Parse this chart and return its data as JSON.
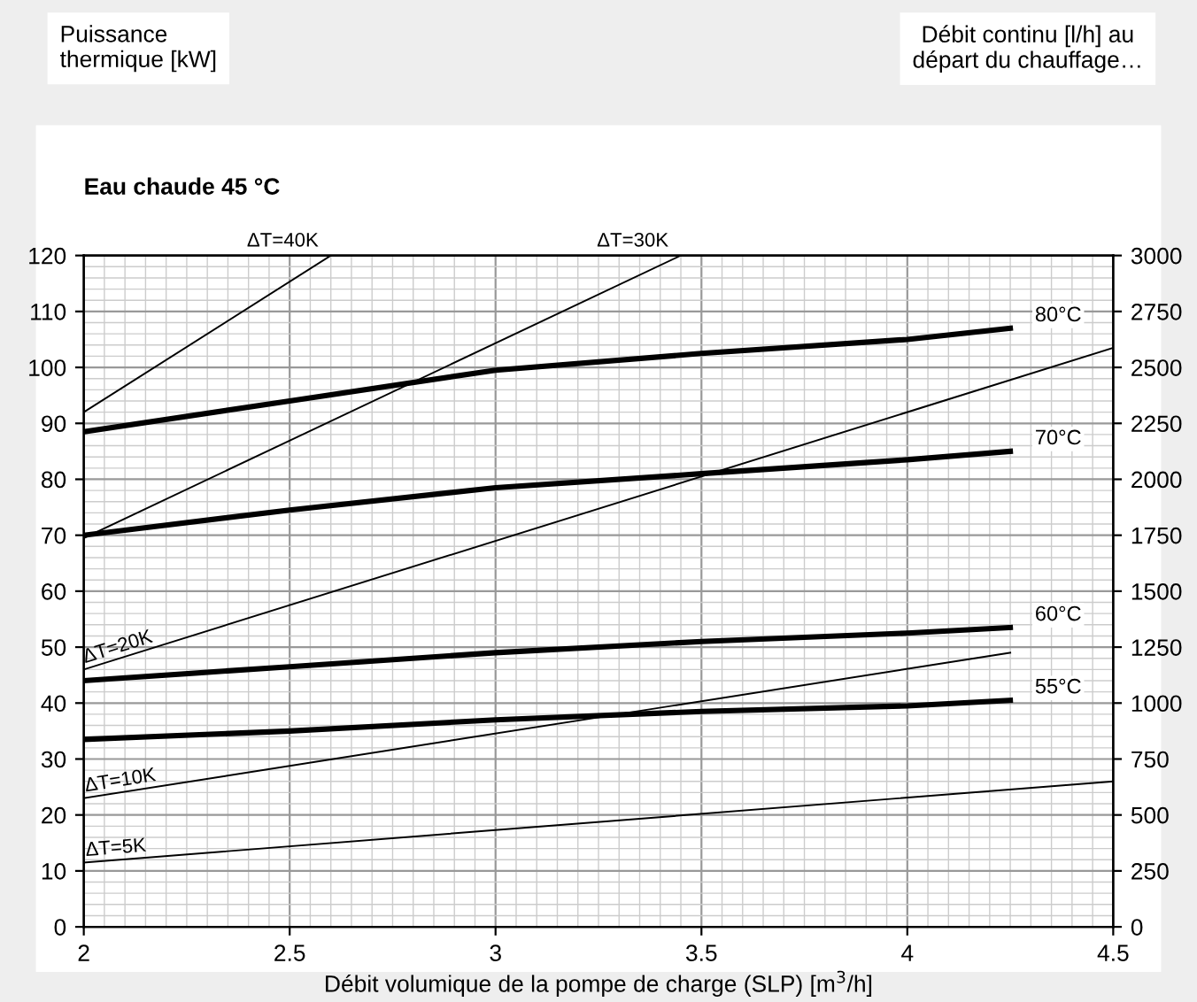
{
  "chart_data": {
    "type": "line",
    "title": "Eau chaude 45 °C",
    "xlabel": "Débit volumique de la pompe de charge (SLP) [m$^{3}$/h]",
    "annotations": [
      "Puissance\nthermique [kW]",
      "Débit continu [l/h] au\ndépart du chauffage…"
    ],
    "xlim": [
      2,
      4.5
    ],
    "xticks": [
      2,
      2.5,
      3,
      3.5,
      4,
      4.5
    ],
    "ylim": [
      0,
      120
    ],
    "yticks": [
      0,
      10,
      20,
      30,
      40,
      50,
      60,
      70,
      80,
      90,
      100,
      110,
      120
    ],
    "y2lim": [
      0,
      3000
    ],
    "y2ticks": [
      0,
      250,
      500,
      750,
      1000,
      1250,
      1500,
      1750,
      2000,
      2250,
      2500,
      2750,
      3000
    ],
    "grid": true,
    "legend": false,
    "marker": "none",
    "line_style": "solid",
    "series": [
      {
        "name": "80°C",
        "color": "#000000",
        "x": [
          2,
          2.5,
          3,
          3.5,
          4,
          4.25
        ],
        "values": [
          88.5,
          94,
          99.5,
          102.5,
          105,
          107
        ]
      },
      {
        "name": "70°C",
        "color": "#000000",
        "x": [
          2,
          2.5,
          3,
          3.5,
          4,
          4.25
        ],
        "values": [
          70,
          74.5,
          78.5,
          81,
          83.5,
          85
        ]
      },
      {
        "name": "60°C",
        "color": "#000000",
        "x": [
          2,
          2.5,
          3,
          3.5,
          4,
          4.25
        ],
        "values": [
          44,
          46.5,
          49,
          51,
          52.5,
          53.5
        ]
      },
      {
        "name": "55°C",
        "color": "#000000",
        "x": [
          2,
          2.5,
          3,
          3.5,
          4,
          4.25
        ],
        "values": [
          33.5,
          35,
          37,
          38.5,
          39.5,
          40.5
        ]
      },
      {
        "name": "ΔT=40K",
        "color": "#000000",
        "x": [
          2,
          2.6
        ],
        "values": [
          92,
          120
        ]
      },
      {
        "name": "ΔT=30K",
        "color": "#000000",
        "x": [
          2,
          3.45
        ],
        "values": [
          69.5,
          120
        ]
      },
      {
        "name": "ΔT=20K",
        "color": "#000000",
        "x": [
          2,
          4.5
        ],
        "values": [
          46,
          103.5
        ]
      },
      {
        "name": "ΔT=10K",
        "color": "#000000",
        "x": [
          2,
          4.25
        ],
        "values": [
          23,
          49
        ]
      },
      {
        "name": "ΔT=5K",
        "color": "#000000",
        "x": [
          2,
          4.5
        ],
        "values": [
          11.5,
          26
        ]
      }
    ]
  }
}
